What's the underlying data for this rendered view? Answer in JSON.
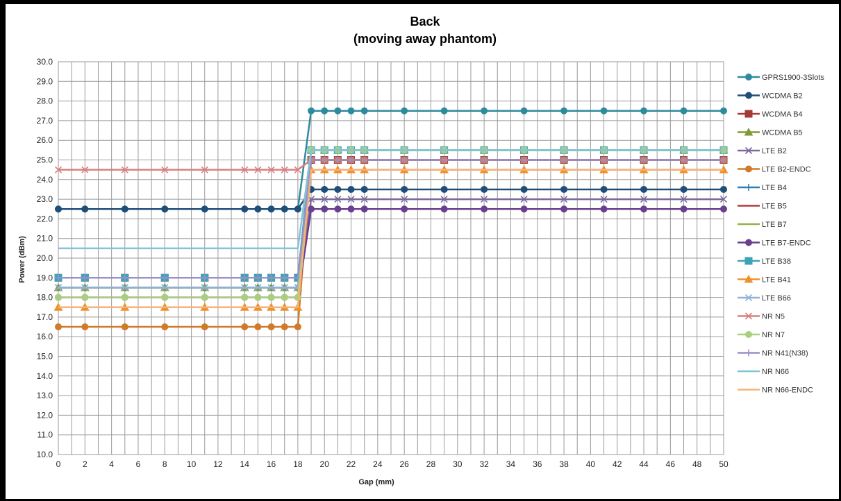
{
  "chart_data": {
    "type": "line",
    "title": "Back",
    "subtitle": "(moving away phantom)",
    "xlabel": "Gap (mm)",
    "ylabel": "Power (dBm)",
    "xlim": [
      0,
      50
    ],
    "ylim": [
      10.0,
      30.0
    ],
    "x_ticks": [
      0,
      2,
      4,
      6,
      8,
      10,
      12,
      14,
      16,
      18,
      20,
      22,
      24,
      26,
      28,
      30,
      32,
      34,
      36,
      38,
      40,
      42,
      44,
      46,
      48,
      50
    ],
    "y_ticks": [
      "10.0",
      "11.0",
      "12.0",
      "13.0",
      "14.0",
      "15.0",
      "16.0",
      "17.0",
      "18.0",
      "19.0",
      "20.0",
      "21.0",
      "22.0",
      "23.0",
      "24.0",
      "25.0",
      "26.0",
      "27.0",
      "28.0",
      "29.0",
      "30.0"
    ],
    "grid": true,
    "legend_position": "right",
    "x": [
      0,
      2,
      5,
      8,
      11,
      14,
      15,
      16,
      17,
      18,
      19,
      20,
      21,
      22,
      23,
      26,
      29,
      32,
      35,
      38,
      41,
      44,
      47,
      50
    ],
    "series": [
      {
        "name": "GPRS1900-3Slots",
        "color": "#2e8b9e",
        "marker": "circle",
        "before": 22.5,
        "after": 27.5
      },
      {
        "name": "WCDMA B2",
        "color": "#1f4e79",
        "marker": "circle",
        "before": 22.5,
        "after": 23.5
      },
      {
        "name": "WCDMA B4",
        "color": "#a33a36",
        "marker": "square",
        "before": 19.0,
        "after": 25.0
      },
      {
        "name": "WCDMA B5",
        "color": "#7f9a3a",
        "marker": "triangle",
        "before": 18.5,
        "after": 25.5
      },
      {
        "name": "LTE B2",
        "color": "#7a6a9a",
        "marker": "x",
        "before": 18.5,
        "after": 23.0
      },
      {
        "name": "LTE B2-ENDC",
        "color": "#d07a2a",
        "marker": "circle",
        "before": 16.5,
        "after": 25.0
      },
      {
        "name": "LTE B4",
        "color": "#2f7fb0",
        "marker": "plus",
        "before": 19.0,
        "after": 25.0
      },
      {
        "name": "LTE B5",
        "color": "#b23a3a",
        "marker": "none",
        "before": 19.0,
        "after": 25.0
      },
      {
        "name": "LTE B7",
        "color": "#8fb34a",
        "marker": "none",
        "before": 18.5,
        "after": 25.5
      },
      {
        "name": "LTE B7-ENDC",
        "color": "#6a3f8f",
        "marker": "circle",
        "before": 18.0,
        "after": 22.5
      },
      {
        "name": "LTE B38",
        "color": "#3fa3b8",
        "marker": "square",
        "before": 19.0,
        "after": 25.5
      },
      {
        "name": "LTE B41",
        "color": "#f0902a",
        "marker": "triangle",
        "before": 17.5,
        "after": 24.5
      },
      {
        "name": "LTE B66",
        "color": "#8fb2d8",
        "marker": "x",
        "before": 18.5,
        "after": 25.5
      },
      {
        "name": "NR N5",
        "color": "#d97f7f",
        "marker": "x",
        "before": 24.5,
        "after": 25.0
      },
      {
        "name": "NR N7",
        "color": "#a8cf7e",
        "marker": "circle",
        "before": 18.0,
        "after": 25.5
      },
      {
        "name": "NR N41(N38)",
        "color": "#9a8fc8",
        "marker": "plus",
        "before": 19.0,
        "after": 25.0
      },
      {
        "name": "NR N66",
        "color": "#7fc4d8",
        "marker": "none",
        "before": 20.5,
        "after": 25.5
      },
      {
        "name": "NR N66-ENDC",
        "color": "#f7b27a",
        "marker": "none",
        "before": 17.5,
        "after": 24.5
      }
    ]
  }
}
